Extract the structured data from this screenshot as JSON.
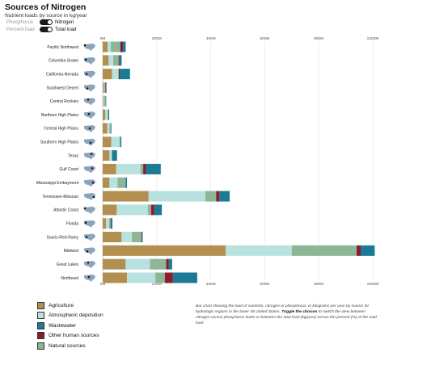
{
  "header": {
    "title": "Sources of Nitrogen",
    "subtitle": "Nutrient loads by source in kg/year",
    "toggle1": {
      "left": "Phosphorus",
      "right": "Nitrogen"
    },
    "toggle2": {
      "left": "Percent load",
      "right": "Total load"
    }
  },
  "colors": {
    "Agriculture": "#b38f4f",
    "Atmospheric deposition": "#b8e2df",
    "Wastewater": "#1b7a96",
    "Other human sources": "#8b1c2e",
    "Natural sources": "#8fb597",
    "map": "#8da5bc",
    "axis_text": "#555555"
  },
  "legend": {
    "items": [
      "Agriculture",
      "Atmospheric deposition",
      "Wastewater",
      "Other human sources",
      "Natural sources"
    ]
  },
  "caption": {
    "text1": "Bar chart showing the load of nutrients, nitrogen or phosphorus, in kilograms per year by source for hydrologic regions in the lower 48 United States.",
    "emph": "Toggle the choices",
    "text2": "to switch the view between nitrogen versus phosphorus loads or between the total load (kg/year) versus the percent (%) of the total load."
  },
  "chart_data": {
    "type": "bar",
    "orientation": "horizontal",
    "stacked": true,
    "xlim": [
      0,
      1000
    ],
    "x_ticks": [
      "0M",
      "200M",
      "400M",
      "600M",
      "800M",
      "1000M"
    ],
    "categories": [
      "Pacific Northwest",
      "Columbia-Snake",
      "California-Nevada",
      "Southwest Desert",
      "Central Rockies",
      "Northern High Plains",
      "Central High Plains",
      "Southern High Plains",
      "Texas",
      "Gulf Coast",
      "Mississippi Embayment",
      "Tennessee-Missouri",
      "Atlantic Coast",
      "Florida",
      "Souris-Red-Rainy",
      "Midwest",
      "Great Lakes",
      "Northeast"
    ],
    "series": [
      {
        "name": "Agriculture",
        "values": [
          18,
          22,
          35,
          3,
          2,
          10,
          17,
          32,
          25,
          50,
          25,
          170,
          52,
          12,
          70,
          455,
          85,
          90
        ]
      },
      {
        "name": "Atmospheric deposition",
        "values": [
          12,
          17,
          22,
          3,
          3,
          8,
          8,
          30,
          8,
          90,
          30,
          210,
          115,
          12,
          38,
          245,
          90,
          105
        ]
      },
      {
        "name": "Natural sources",
        "values": [
          35,
          20,
          3,
          4,
          6,
          3,
          4,
          3,
          2,
          10,
          30,
          40,
          12,
          5,
          35,
          240,
          60,
          35
        ]
      },
      {
        "name": "Other human sources",
        "values": [
          10,
          3,
          3,
          2,
          0,
          0,
          0,
          0,
          0,
          10,
          0,
          12,
          12,
          2,
          2,
          15,
          10,
          30
        ]
      },
      {
        "name": "Wastewater",
        "values": [
          10,
          8,
          38,
          2,
          2,
          3,
          3,
          4,
          18,
          55,
          5,
          38,
          28,
          5,
          3,
          52,
          12,
          90
        ]
      }
    ]
  }
}
